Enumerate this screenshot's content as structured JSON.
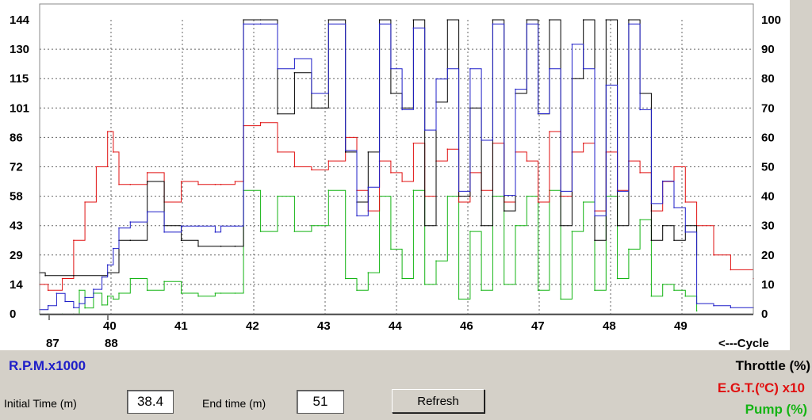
{
  "chart_data": {
    "type": "line",
    "x_ticks": [
      "40",
      "41",
      "42",
      "43",
      "44",
      "46",
      "47",
      "48",
      "49"
    ],
    "cycle_ticks": [
      "87",
      "88"
    ],
    "cycle_label": "<---Cycle",
    "left_axis": {
      "ticks": [
        "0",
        "14",
        "29",
        "43",
        "58",
        "72",
        "86",
        "101",
        "115",
        "130",
        "144"
      ],
      "ylim": [
        0,
        144
      ]
    },
    "right_axis": {
      "ticks": [
        "0",
        "10",
        "20",
        "30",
        "40",
        "50",
        "60",
        "70",
        "80",
        "90",
        "100"
      ],
      "ylim": [
        0,
        100
      ]
    },
    "grid": true,
    "xlim": [
      38.4,
      51
    ],
    "series": [
      {
        "name": "R.P.M.x1000",
        "axis": "left",
        "color": "#1f1fc8",
        "x": [
          38.4,
          38.55,
          38.7,
          38.85,
          39.0,
          39.1,
          39.2,
          39.35,
          39.5,
          39.6,
          39.7,
          39.8,
          40.0,
          40.3,
          40.6,
          40.9,
          41.2,
          41.5,
          41.6,
          41.85,
          42.0,
          42.3,
          42.6,
          42.9,
          43.2,
          43.5,
          43.8,
          44.0,
          44.2,
          44.4,
          44.6,
          44.8,
          45.0,
          45.2,
          45.4,
          45.6,
          45.8,
          46.0,
          46.2,
          46.4,
          46.6,
          46.8,
          47.0,
          47.2,
          47.4,
          47.6,
          47.8,
          48.0,
          48.2,
          48.4,
          48.6,
          48.8,
          49.0,
          49.2,
          49.4,
          49.6,
          49.8,
          50.0,
          50.3,
          50.6,
          51.0
        ],
        "values": [
          2,
          4,
          10,
          6,
          3,
          5,
          8,
          12,
          18,
          24,
          32,
          42,
          45,
          50,
          40,
          43,
          43,
          40,
          43,
          43,
          142,
          142,
          120,
          125,
          108,
          142,
          80,
          48,
          62,
          142,
          120,
          100,
          140,
          90,
          115,
          120,
          60,
          120,
          85,
          142,
          58,
          110,
          142,
          98,
          120,
          60,
          132,
          120,
          48,
          112,
          60,
          142,
          100,
          54,
          65,
          52,
          40,
          5,
          4,
          3,
          3
        ]
      },
      {
        "name": "Throttle (%)",
        "axis": "right",
        "color": "#000000",
        "x": [
          38.4,
          38.5,
          39.0,
          39.6,
          39.8,
          40.0,
          40.3,
          40.6,
          40.9,
          41.2,
          41.6,
          41.85,
          42.0,
          42.3,
          42.6,
          42.9,
          43.2,
          43.5,
          43.8,
          44.0,
          44.2,
          44.4,
          44.6,
          44.8,
          45.0,
          45.2,
          45.4,
          45.6,
          45.8,
          46.0,
          46.2,
          46.4,
          46.6,
          46.8,
          47.0,
          47.2,
          47.4,
          47.6,
          47.8,
          48.0,
          48.2,
          48.4,
          48.6,
          48.8,
          49.0,
          49.2,
          49.4,
          49.6,
          49.8,
          50.0
        ],
        "values": [
          14,
          13,
          13,
          14,
          25,
          25,
          45,
          30,
          25,
          23,
          23,
          23,
          100,
          100,
          68,
          82,
          70,
          100,
          55,
          38,
          55,
          100,
          75,
          70,
          100,
          30,
          72,
          100,
          40,
          70,
          30,
          100,
          35,
          75,
          100,
          68,
          100,
          30,
          80,
          100,
          25,
          100,
          30,
          100,
          75,
          25,
          30,
          25,
          30,
          20
        ]
      },
      {
        "name": "E.G.T.(ºC) x10",
        "axis": "right",
        "color": "#e01010",
        "x": [
          38.4,
          38.55,
          38.8,
          39.0,
          39.2,
          39.4,
          39.6,
          39.7,
          39.8,
          40.0,
          40.3,
          40.6,
          40.9,
          41.2,
          41.5,
          41.6,
          41.85,
          42.0,
          42.3,
          42.6,
          42.9,
          43.2,
          43.5,
          43.8,
          44.0,
          44.2,
          44.4,
          44.6,
          44.8,
          45.0,
          45.2,
          45.4,
          45.6,
          45.8,
          46.0,
          46.2,
          46.4,
          46.6,
          46.8,
          47.0,
          47.2,
          47.4,
          47.6,
          47.8,
          48.0,
          48.2,
          48.4,
          48.6,
          48.8,
          49.0,
          49.2,
          49.4,
          49.6,
          49.8,
          50.0,
          50.3,
          50.6,
          51.0
        ],
        "values": [
          10,
          8,
          12,
          25,
          38,
          50,
          62,
          55,
          44,
          44,
          48,
          38,
          45,
          44,
          44,
          44,
          45,
          64,
          65,
          55,
          50,
          49,
          52,
          60,
          42,
          35,
          52,
          48,
          45,
          58,
          40,
          52,
          56,
          38,
          48,
          42,
          58,
          38,
          55,
          52,
          38,
          62,
          40,
          55,
          58,
          35,
          55,
          42,
          52,
          48,
          35,
          45,
          50,
          38,
          30,
          20,
          15,
          12
        ]
      },
      {
        "name": "Pump (%)",
        "axis": "right",
        "color": "#14b414",
        "x": [
          38.4,
          38.55,
          38.8,
          39.0,
          39.1,
          39.2,
          39.35,
          39.5,
          39.6,
          39.7,
          39.8,
          40.0,
          40.3,
          40.6,
          40.9,
          41.2,
          41.5,
          41.6,
          41.85,
          42.0,
          42.3,
          42.6,
          42.9,
          43.2,
          43.5,
          43.8,
          44.0,
          44.2,
          44.4,
          44.6,
          44.8,
          45.0,
          45.2,
          45.4,
          45.6,
          45.8,
          46.0,
          46.2,
          46.4,
          46.6,
          46.8,
          47.0,
          47.2,
          47.4,
          47.6,
          47.8,
          48.0,
          48.2,
          48.4,
          48.6,
          48.8,
          49.0,
          49.2,
          49.4,
          49.6,
          49.8,
          50.0
        ],
        "values": [
          0,
          0,
          0,
          0,
          8,
          2,
          7,
          3,
          6,
          5,
          7,
          12,
          8,
          11,
          7,
          6,
          7,
          7,
          7,
          42,
          28,
          40,
          28,
          30,
          42,
          12,
          8,
          14,
          40,
          22,
          12,
          42,
          10,
          18,
          40,
          5,
          28,
          8,
          40,
          10,
          30,
          40,
          8,
          42,
          5,
          28,
          38,
          8,
          40,
          12,
          22,
          32,
          6,
          10,
          8,
          6,
          1
        ]
      }
    ]
  },
  "legend": {
    "rpm": "R.P.M.x1000",
    "throttle": "Throttle (%)",
    "egt": "E.G.T.(ºC) x10",
    "pump": "Pump (%)"
  },
  "controls": {
    "initial_label": "Initial Time (m)",
    "initial_value": "38.4",
    "end_label": "End time (m)",
    "end_value": "51",
    "refresh_label": "Refresh"
  }
}
